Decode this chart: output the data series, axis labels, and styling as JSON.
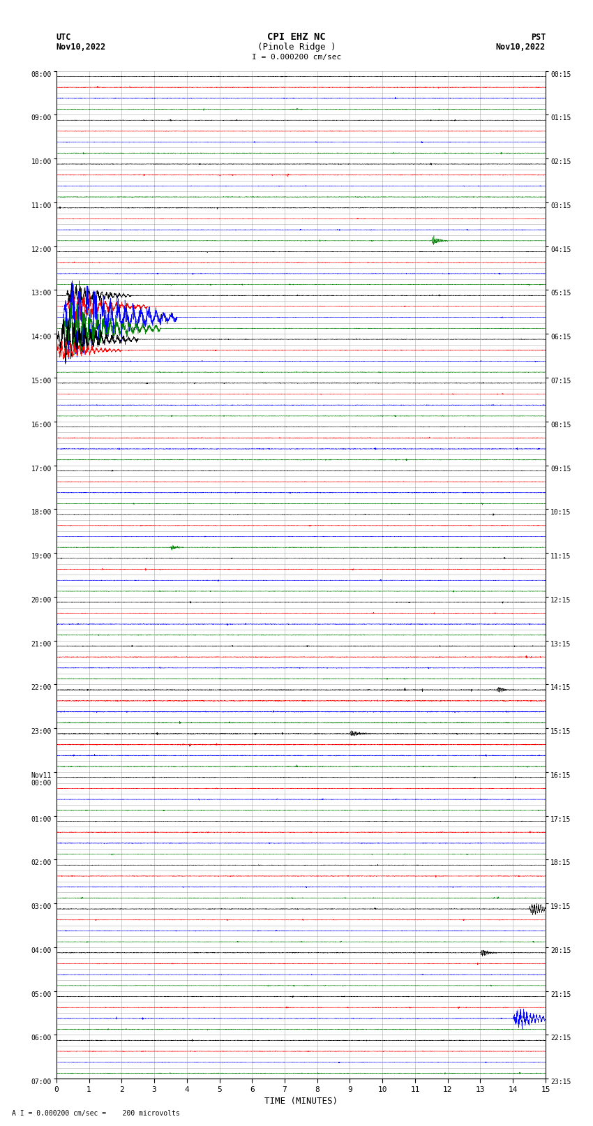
{
  "title_line1": "CPI EHZ NC",
  "title_line2": "(Pinole Ridge )",
  "scale_label": "I = 0.000200 cm/sec",
  "utc_label1": "UTC",
  "utc_label2": "Nov10,2022",
  "pst_label1": "PST",
  "pst_label2": "Nov10,2022",
  "bottom_label": "A I = 0.000200 cm/sec =    200 microvolts",
  "xlabel": "TIME (MINUTES)",
  "left_times": [
    "08:00",
    "",
    "",
    "",
    "09:00",
    "",
    "",
    "",
    "10:00",
    "",
    "",
    "",
    "11:00",
    "",
    "",
    "",
    "12:00",
    "",
    "",
    "",
    "13:00",
    "",
    "",
    "",
    "14:00",
    "",
    "",
    "",
    "15:00",
    "",
    "",
    "",
    "16:00",
    "",
    "",
    "",
    "17:00",
    "",
    "",
    "",
    "18:00",
    "",
    "",
    "",
    "19:00",
    "",
    "",
    "",
    "20:00",
    "",
    "",
    "",
    "21:00",
    "",
    "",
    "",
    "22:00",
    "",
    "",
    "",
    "23:00",
    "",
    "",
    "",
    "Nov11\n00:00",
    "",
    "",
    "",
    "01:00",
    "",
    "",
    "",
    "02:00",
    "",
    "",
    "",
    "03:00",
    "",
    "",
    "",
    "04:00",
    "",
    "",
    "",
    "05:00",
    "",
    "",
    "",
    "06:00",
    "",
    "",
    "",
    "07:00",
    "",
    ""
  ],
  "right_times": [
    "00:15",
    "",
    "",
    "",
    "01:15",
    "",
    "",
    "",
    "02:15",
    "",
    "",
    "",
    "03:15",
    "",
    "",
    "",
    "04:15",
    "",
    "",
    "",
    "05:15",
    "",
    "",
    "",
    "06:15",
    "",
    "",
    "",
    "07:15",
    "",
    "",
    "",
    "08:15",
    "",
    "",
    "",
    "09:15",
    "",
    "",
    "",
    "10:15",
    "",
    "",
    "",
    "11:15",
    "",
    "",
    "",
    "12:15",
    "",
    "",
    "",
    "13:15",
    "",
    "",
    "",
    "14:15",
    "",
    "",
    "",
    "15:15",
    "",
    "",
    "",
    "16:15",
    "",
    "",
    "",
    "17:15",
    "",
    "",
    "",
    "18:15",
    "",
    "",
    "",
    "19:15",
    "",
    "",
    "",
    "20:15",
    "",
    "",
    "",
    "21:15",
    "",
    "",
    "",
    "22:15",
    "",
    "",
    "",
    "23:15",
    "",
    ""
  ],
  "colors": [
    "black",
    "red",
    "blue",
    "green"
  ],
  "n_rows": 92,
  "minutes": 15,
  "bg_color": "white",
  "grid_color": "#888888",
  "n_pts": 4500
}
